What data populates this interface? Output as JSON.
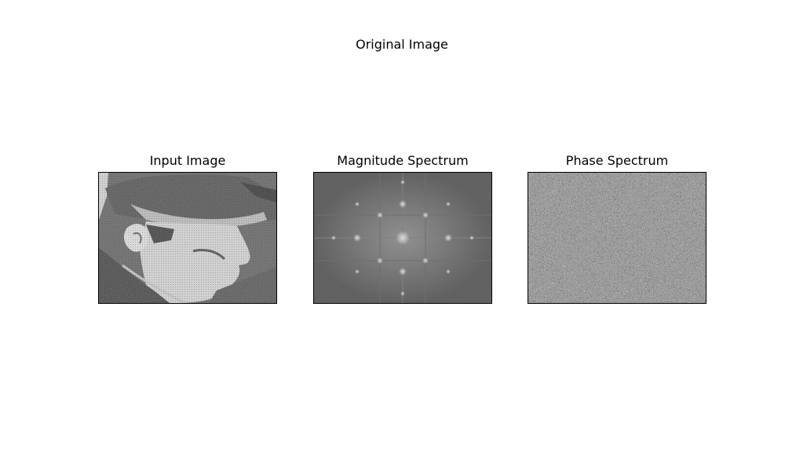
{
  "figure": {
    "suptitle": "Original Image",
    "panels": [
      {
        "title": "Input Image",
        "content": "grayscale photo of a man in a cap, profile view, halftone texture"
      },
      {
        "title": "Magnitude Spectrum",
        "content": "log magnitude spectrum with bright center and periodic peaks"
      },
      {
        "title": "Phase Spectrum",
        "content": "random-looking gray noise"
      }
    ]
  },
  "colors": {
    "background": "#ffffff",
    "text": "#000000",
    "frame": "#000000"
  }
}
